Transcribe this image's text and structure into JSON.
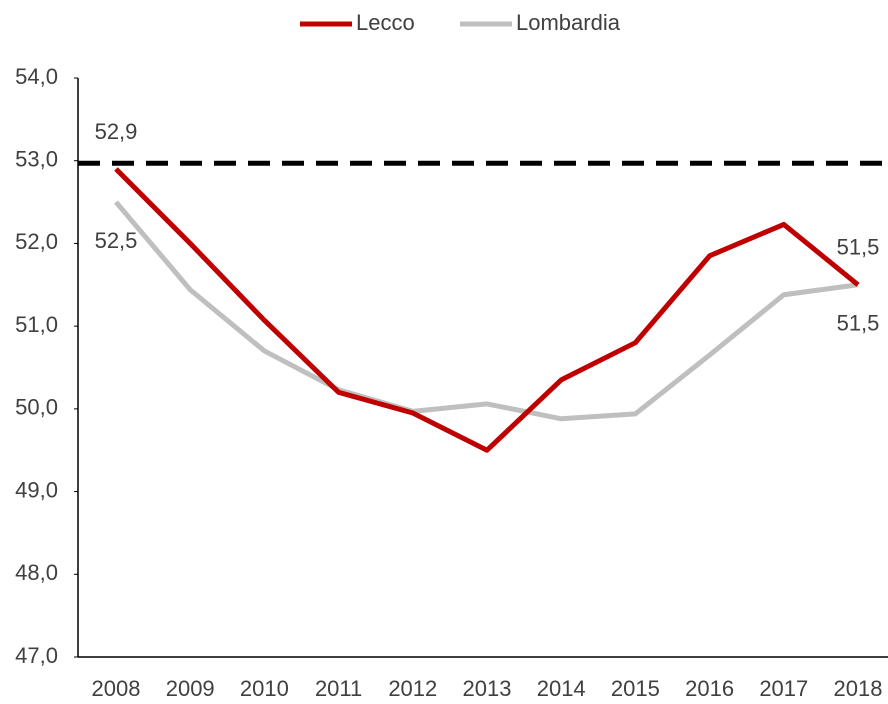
{
  "chart_data": {
    "type": "line",
    "categories": [
      "2008",
      "2009",
      "2010",
      "2011",
      "2012",
      "2013",
      "2014",
      "2015",
      "2016",
      "2017",
      "2018"
    ],
    "series": [
      {
        "name": "Lecco",
        "color": "#c00000",
        "values": [
          52.9,
          52.0,
          51.07,
          50.2,
          49.95,
          49.5,
          50.35,
          50.8,
          51.85,
          52.23,
          51.5
        ],
        "value_labels": [
          "52,9",
          null,
          null,
          null,
          null,
          null,
          null,
          null,
          null,
          null,
          "51,5"
        ]
      },
      {
        "name": "Lombardia",
        "color": "#bfbfbf",
        "values": [
          52.5,
          51.44,
          50.7,
          50.23,
          49.97,
          50.06,
          49.88,
          49.94,
          50.65,
          51.38,
          51.5
        ],
        "value_labels": [
          "52,5",
          null,
          null,
          null,
          null,
          null,
          null,
          null,
          null,
          null,
          "51,5"
        ]
      }
    ],
    "reference_line": 52.97,
    "ylim": [
      47,
      54
    ],
    "yticks": [
      {
        "value": 47,
        "label": "47,0"
      },
      {
        "value": 48,
        "label": "48,0"
      },
      {
        "value": 49,
        "label": "49,0"
      },
      {
        "value": 50,
        "label": "50,0"
      },
      {
        "value": 51,
        "label": "51,0"
      },
      {
        "value": 52,
        "label": "52,0"
      },
      {
        "value": 53,
        "label": "53,0"
      },
      {
        "value": 54,
        "label": "54,0"
      }
    ],
    "legend": "top"
  }
}
